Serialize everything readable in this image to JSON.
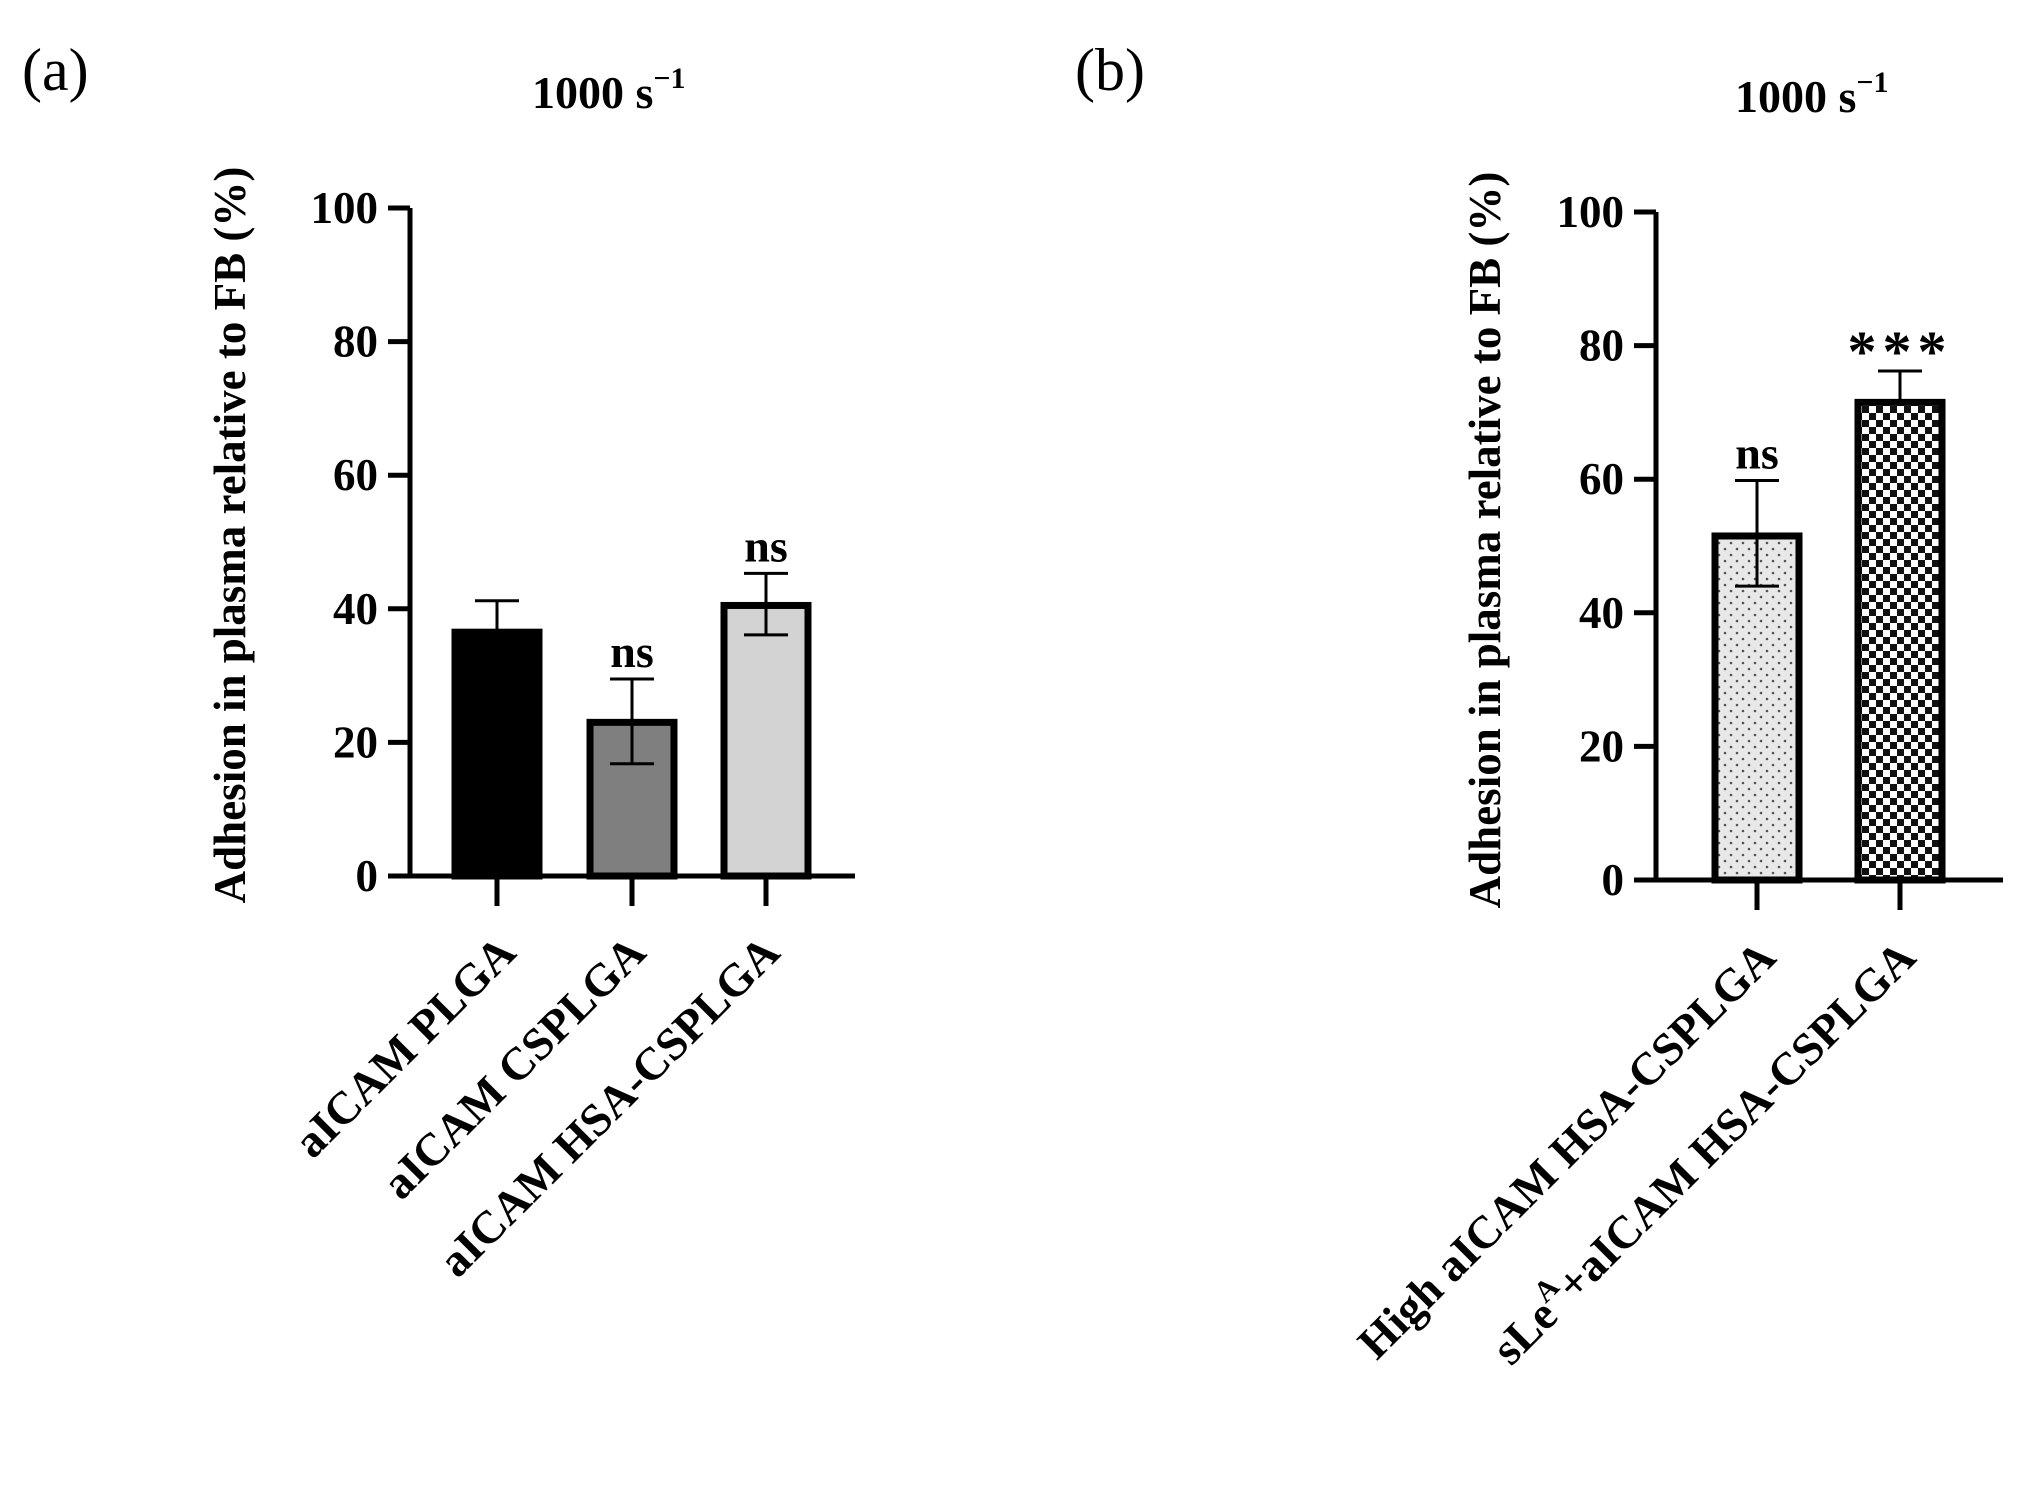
{
  "chart_data": [
    {
      "panel_label": "(a)",
      "type": "bar",
      "title_base": "1000 s",
      "title_sup": "−1",
      "ylabel": "Adhesion in plasma relative to FB (%)",
      "xlabel": "",
      "ylim": [
        0,
        100
      ],
      "yticks": [
        0,
        20,
        40,
        60,
        80,
        100
      ],
      "grid": false,
      "categories": [
        "aICAM PLGA",
        "aICAM CSPLGA",
        "aICAM HSA-CSPLGA"
      ],
      "values": [
        36.5,
        23,
        40.5
      ],
      "error_upper": [
        41.2,
        29.5,
        45.3
      ],
      "error_lower": [
        36.5,
        16.8,
        36.1
      ],
      "annotations": [
        "",
        "ns",
        "ns"
      ],
      "fills": [
        "#000000",
        "#7f7f7f",
        "#d3d3d3"
      ],
      "patterns": [
        "none",
        "none",
        "none"
      ]
    },
    {
      "panel_label": "(b)",
      "type": "bar",
      "title_base": "1000 s",
      "title_sup": "−1",
      "ylabel": "Adhesion in plasma relative to FB (%)",
      "xlabel": "",
      "ylim": [
        0,
        100
      ],
      "yticks": [
        0,
        20,
        40,
        60,
        80,
        100
      ],
      "grid": false,
      "categories": [
        "High aICAM HSA-CSPLGA",
        "sLeA+aICAM HSA-CSPLGA"
      ],
      "category_parts": [
        {
          "base": "High aICAM HSA-CSPLGA",
          "sup": "",
          "rest": ""
        },
        {
          "base": "sLe",
          "sup": "A",
          "rest": "+aICAM HSA-CSPLGA"
        }
      ],
      "values": [
        51.5,
        71.5
      ],
      "error_upper": [
        59.8,
        76.2
      ],
      "error_lower": [
        44.0,
        71.5
      ],
      "annotations": [
        "ns",
        "***"
      ],
      "fills": [
        "#e8e8e8",
        "#ffffff"
      ],
      "patterns": [
        "dots",
        "checker"
      ]
    }
  ]
}
